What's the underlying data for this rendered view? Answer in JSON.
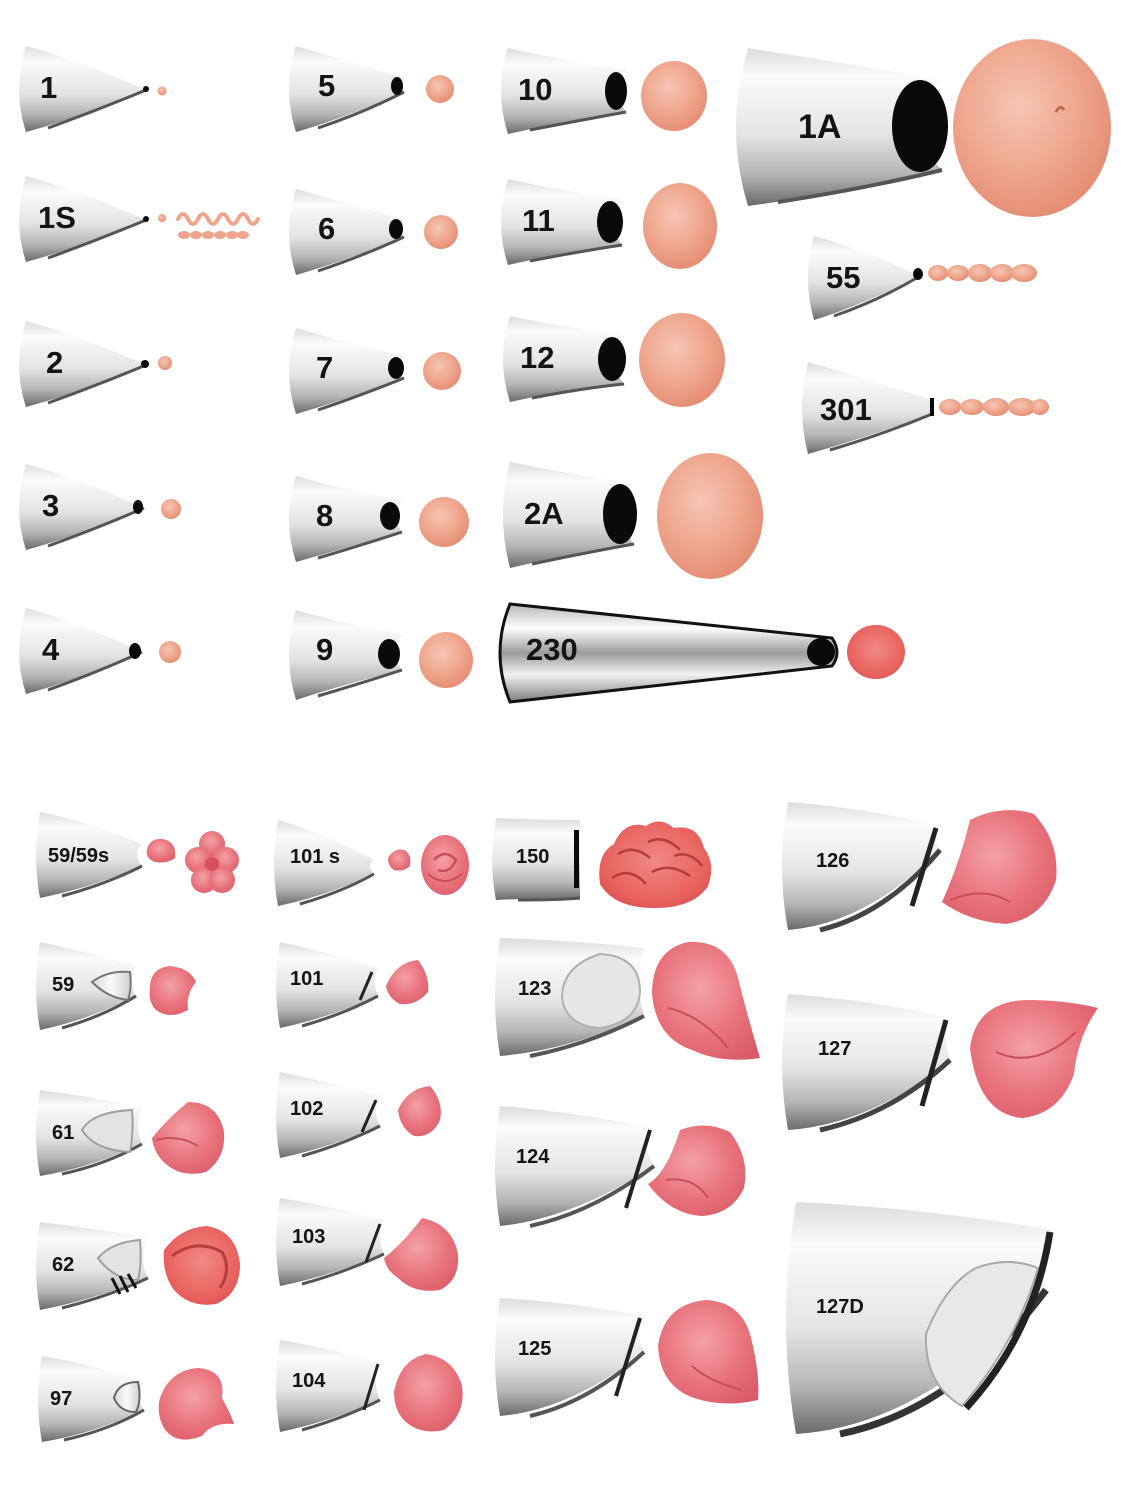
{
  "colors": {
    "background": "#ffffff",
    "metal_light": "#f6f6f6",
    "metal_mid": "#c9c9c9",
    "metal_dark": "#6f6f6f",
    "opening": "#0a0a0a",
    "icing_peach": "#eea78e",
    "icing_pink": "#e9727c",
    "icing_coral": "#e85f5c"
  },
  "round_tips": [
    {
      "label": "1"
    },
    {
      "label": "1S"
    },
    {
      "label": "2"
    },
    {
      "label": "3"
    },
    {
      "label": "4"
    },
    {
      "label": "5"
    },
    {
      "label": "6"
    },
    {
      "label": "7"
    },
    {
      "label": "8"
    },
    {
      "label": "9"
    },
    {
      "label": "10"
    },
    {
      "label": "11"
    },
    {
      "label": "12"
    },
    {
      "label": "2A"
    },
    {
      "label": "230"
    },
    {
      "label": "1A"
    },
    {
      "label": "55"
    },
    {
      "label": "301"
    }
  ],
  "petal_tips": [
    {
      "label": "59/59s"
    },
    {
      "label": "59"
    },
    {
      "label": "61"
    },
    {
      "label": "62"
    },
    {
      "label": "97"
    },
    {
      "label": "101 s"
    },
    {
      "label": "101"
    },
    {
      "label": "102"
    },
    {
      "label": "103"
    },
    {
      "label": "104"
    },
    {
      "label": "150"
    },
    {
      "label": "123"
    },
    {
      "label": "124"
    },
    {
      "label": "125"
    },
    {
      "label": "126"
    },
    {
      "label": "127"
    },
    {
      "label": "127D"
    }
  ]
}
